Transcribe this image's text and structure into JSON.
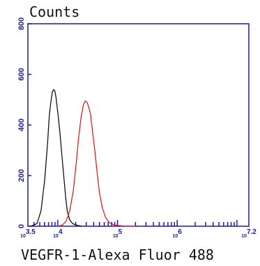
{
  "chart_data": {
    "type": "line",
    "title": "Counts",
    "xlabel": "VEGFR-1-Alexa Fluor 488",
    "ylabel": "",
    "x_scale": "log",
    "xlim": [
      3.5,
      7.2
    ],
    "ylim": [
      0,
      800
    ],
    "y_ticks": [
      "0",
      "200",
      "400",
      "600",
      "800"
    ],
    "x_ticks": [
      {
        "base": "10",
        "exp": "3.5",
        "value": 3.5
      },
      {
        "base": "10",
        "exp": "4",
        "value": 4
      },
      {
        "base": "10",
        "exp": "5",
        "value": 5
      },
      {
        "base": "10",
        "exp": "6",
        "value": 6
      },
      {
        "base": "10",
        "exp": "7.2",
        "value": 7.2
      }
    ],
    "axis_color": "#1a1aa6",
    "grid": false,
    "series": [
      {
        "color": "#111111",
        "x": [
          3.55,
          3.65,
          3.72,
          3.78,
          3.83,
          3.86,
          3.89,
          3.91,
          3.93,
          3.95,
          3.97,
          3.99,
          4.01,
          4.04,
          4.07,
          4.1,
          4.13,
          4.16,
          4.2,
          4.25,
          4.32,
          4.4
        ],
        "y": [
          0,
          10,
          60,
          180,
          330,
          440,
          500,
          530,
          540,
          535,
          510,
          470,
          430,
          360,
          280,
          200,
          120,
          60,
          25,
          10,
          4,
          0
        ]
      },
      {
        "color": "#e02020",
        "x": [
          4.0,
          4.08,
          4.14,
          4.2,
          4.26,
          4.31,
          4.35,
          4.39,
          4.43,
          4.46,
          4.49,
          4.52,
          4.55,
          4.58,
          4.62,
          4.66,
          4.7,
          4.75,
          4.8,
          4.86,
          4.93,
          5.0,
          5.1,
          5.3
        ],
        "y": [
          0,
          5,
          20,
          60,
          140,
          250,
          350,
          430,
          480,
          495,
          490,
          470,
          440,
          380,
          300,
          210,
          130,
          70,
          35,
          15,
          6,
          3,
          1,
          0
        ]
      }
    ]
  }
}
